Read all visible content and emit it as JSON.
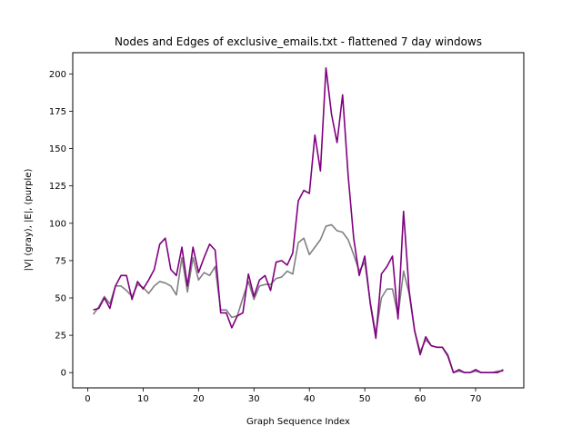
{
  "chart_data": {
    "type": "line",
    "title": "Nodes and Edges of exclusive_emails.txt - flattened 7 day windows",
    "xlabel": "Graph Sequence Index",
    "ylabel": "|V| (gray), |E|, (purple)",
    "xlim": [
      -2.7,
      78.7
    ],
    "ylim": [
      -10.2,
      214.2
    ],
    "xticks": [
      0,
      10,
      20,
      30,
      40,
      50,
      60,
      70
    ],
    "yticks": [
      0,
      25,
      50,
      75,
      100,
      125,
      150,
      175,
      200
    ],
    "grid": false,
    "series": [
      {
        "name": "|V|",
        "color": "#808080",
        "x": [
          1,
          2,
          3,
          4,
          5,
          6,
          7,
          8,
          9,
          10,
          11,
          12,
          13,
          14,
          15,
          16,
          17,
          18,
          19,
          20,
          21,
          22,
          23,
          24,
          25,
          26,
          27,
          28,
          29,
          30,
          31,
          32,
          33,
          34,
          35,
          36,
          37,
          38,
          39,
          40,
          41,
          42,
          43,
          44,
          45,
          46,
          47,
          48,
          49,
          50,
          51,
          52,
          53,
          54,
          55,
          56,
          57,
          58,
          59,
          60,
          61,
          62,
          63,
          64,
          65,
          66,
          67,
          68,
          69,
          70,
          71,
          72,
          73,
          74,
          75
        ],
        "values": [
          39,
          44,
          51,
          46,
          58,
          58,
          55,
          51,
          59,
          57,
          53,
          58,
          61,
          60,
          58,
          52,
          77,
          54,
          77,
          62,
          67,
          65,
          71,
          42,
          42,
          37,
          38,
          50,
          61,
          49,
          58,
          59,
          59,
          63,
          64,
          68,
          66,
          87,
          90,
          79,
          84,
          89,
          98,
          99,
          95,
          94,
          89,
          79,
          68,
          74,
          47,
          26,
          50,
          56,
          56,
          38,
          68,
          53,
          28,
          14,
          22,
          18,
          17,
          17,
          12,
          0,
          1,
          0,
          0,
          1,
          0,
          0,
          0,
          1,
          1
        ]
      },
      {
        "name": "|E|",
        "color": "#800080",
        "x": [
          1,
          2,
          3,
          4,
          5,
          6,
          7,
          8,
          9,
          10,
          11,
          12,
          13,
          14,
          15,
          16,
          17,
          18,
          19,
          20,
          21,
          22,
          23,
          24,
          25,
          26,
          27,
          28,
          29,
          30,
          31,
          32,
          33,
          34,
          35,
          36,
          37,
          38,
          39,
          40,
          41,
          42,
          43,
          44,
          45,
          46,
          47,
          48,
          49,
          50,
          51,
          52,
          53,
          54,
          55,
          56,
          57,
          58,
          59,
          60,
          61,
          62,
          63,
          64,
          65,
          66,
          67,
          68,
          69,
          70,
          71,
          72,
          73,
          74,
          75
        ],
        "values": [
          42,
          43,
          50,
          43,
          58,
          65,
          65,
          49,
          61,
          56,
          62,
          69,
          86,
          90,
          69,
          65,
          84,
          58,
          84,
          67,
          77,
          86,
          82,
          40,
          40,
          30,
          38,
          40,
          66,
          51,
          62,
          65,
          55,
          74,
          75,
          72,
          80,
          115,
          122,
          120,
          159,
          135,
          204,
          173,
          154,
          186,
          132,
          90,
          65,
          78,
          46,
          23,
          66,
          71,
          78,
          36,
          108,
          55,
          28,
          12,
          24,
          18,
          17,
          17,
          11,
          0,
          2,
          0,
          0,
          2,
          0,
          0,
          0,
          0,
          2
        ]
      }
    ]
  }
}
